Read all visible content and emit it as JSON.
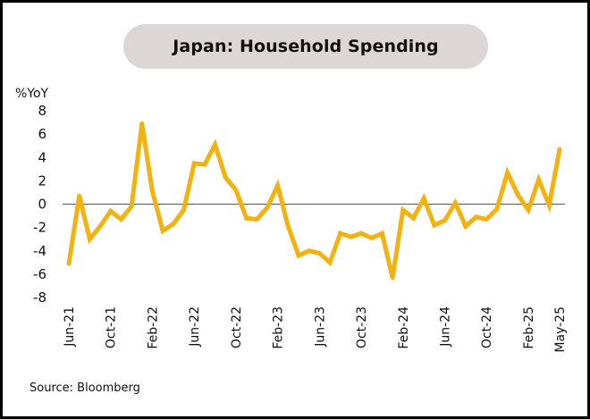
{
  "chart_data": {
    "type": "line",
    "title": "Japan: Household Spending",
    "ylabel": "%YoY",
    "xlabel": "",
    "source": "Source: Bloomberg",
    "ylim": [
      -8,
      8
    ],
    "yticks": [
      8,
      6,
      4,
      2,
      0,
      -2,
      -4,
      -6,
      -8
    ],
    "ytick_labels": [
      "8",
      "6",
      "4",
      "2",
      "0",
      "-2",
      "-4",
      "-6",
      "-8"
    ],
    "xtick_labels": [
      {
        "label": "Jun-21",
        "index": 0
      },
      {
        "label": "Oct-21",
        "index": 4
      },
      {
        "label": "Feb-22",
        "index": 8
      },
      {
        "label": "Jun-22",
        "index": 12
      },
      {
        "label": "Oct-22",
        "index": 16
      },
      {
        "label": "Feb-23",
        "index": 20
      },
      {
        "label": "Jun-23",
        "index": 24
      },
      {
        "label": "Oct-23",
        "index": 28
      },
      {
        "label": "Feb-24",
        "index": 32
      },
      {
        "label": "Jun-24",
        "index": 36
      },
      {
        "label": "Oct-24",
        "index": 40
      },
      {
        "label": "Feb-25",
        "index": 44
      },
      {
        "label": "May-25",
        "index": 47
      }
    ],
    "grid": false,
    "zero_line": true,
    "series": [
      {
        "name": "Household Spending %YoY",
        "color": "#f2b20f",
        "x": [
          "Jun-21",
          "Jul-21",
          "Aug-21",
          "Sep-21",
          "Oct-21",
          "Nov-21",
          "Dec-21",
          "Jan-22",
          "Feb-22",
          "Mar-22",
          "Apr-22",
          "May-22",
          "Jun-22",
          "Jul-22",
          "Aug-22",
          "Sep-22",
          "Oct-22",
          "Nov-22",
          "Dec-22",
          "Jan-23",
          "Feb-23",
          "Mar-23",
          "Apr-23",
          "May-23",
          "Jun-23",
          "Jul-23",
          "Aug-23",
          "Sep-23",
          "Oct-23",
          "Nov-23",
          "Dec-23",
          "Jan-24",
          "Feb-24",
          "Mar-24",
          "Apr-24",
          "May-24",
          "Jun-24",
          "Jul-24",
          "Aug-24",
          "Sep-24",
          "Oct-24",
          "Nov-24",
          "Dec-24",
          "Jan-25",
          "Feb-25",
          "Mar-25",
          "Apr-25",
          "May-25"
        ],
        "values": [
          -5.1,
          0.7,
          -3.0,
          -1.9,
          -0.6,
          -1.3,
          -0.2,
          6.9,
          1.1,
          -2.3,
          -1.7,
          -0.5,
          3.5,
          3.4,
          5.1,
          2.3,
          1.2,
          -1.2,
          -1.3,
          -0.3,
          1.6,
          -1.9,
          -4.4,
          -4.0,
          -4.2,
          -5.0,
          -2.5,
          -2.8,
          -2.5,
          -2.9,
          -2.5,
          -6.3,
          -0.5,
          -1.2,
          0.5,
          -1.8,
          -1.4,
          0.1,
          -1.9,
          -1.1,
          -1.3,
          -0.4,
          2.7,
          0.8,
          -0.5,
          2.1,
          -0.1,
          4.7
        ]
      }
    ]
  }
}
